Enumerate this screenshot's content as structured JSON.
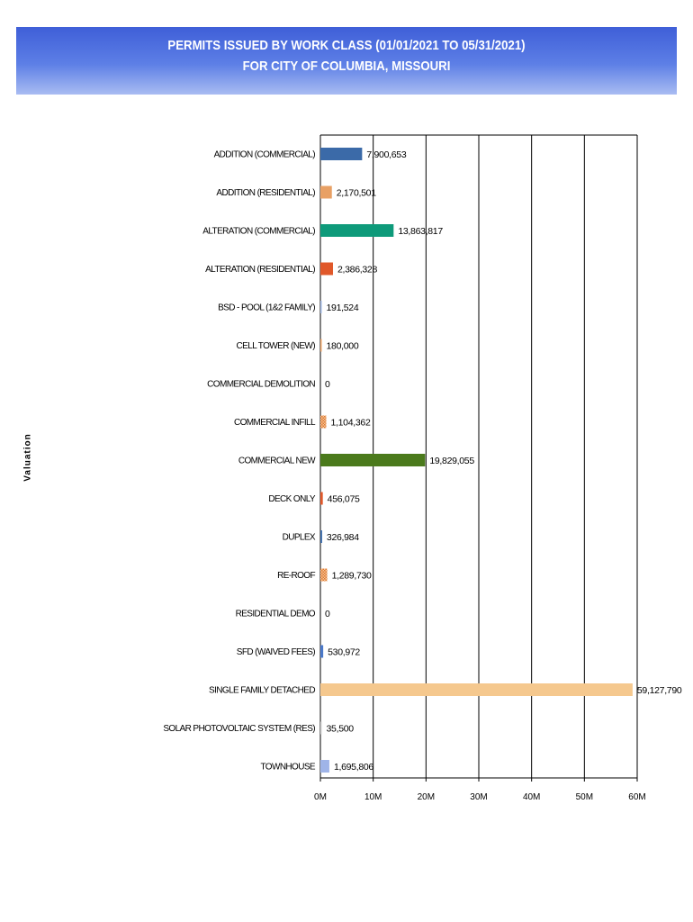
{
  "chart_data": {
    "type": "bar",
    "orientation": "horizontal",
    "title": "PERMITS ISSUED BY WORK CLASS (01/01/2021 TO 05/31/2021)",
    "subtitle": "FOR CITY OF COLUMBIA, MISSOURI",
    "ylabel": "Valuation",
    "xlabel": "",
    "xlim": [
      0,
      60000000
    ],
    "x_ticks": [
      0,
      10000000,
      20000000,
      30000000,
      40000000,
      50000000,
      60000000
    ],
    "x_tick_labels": [
      "0M",
      "10M",
      "20M",
      "30M",
      "40M",
      "50M",
      "60M"
    ],
    "grid": "vertical",
    "categories": [
      "ADDITION (COMMERCIAL)",
      "ADDITION (RESIDENTIAL)",
      "ALTERATION (COMMERCIAL)",
      "ALTERATION (RESIDENTIAL)",
      "BSD - POOL (1&2 FAMILY)",
      "CELL TOWER (NEW)",
      "COMMERCIAL DEMOLITION",
      "COMMERCIAL INFILL",
      "COMMERCIAL NEW",
      "DECK ONLY",
      "DUPLEX",
      "RE-ROOF",
      "RESIDENTIAL DEMO",
      "SFD (WAIVED FEES)",
      "SINGLE FAMILY DETACHED",
      "SOLAR PHOTOVOLTAIC SYSTEM (RES)",
      "TOWNHOUSE"
    ],
    "values": [
      7900653,
      2170501,
      13863817,
      2386328,
      191524,
      180000,
      0,
      1104362,
      19829055,
      456075,
      326984,
      1289730,
      0,
      530972,
      59127790,
      35500,
      1695806
    ],
    "value_labels": [
      "7,900,653",
      "2,170,501",
      "13,863,817",
      "2,386,328",
      "191,524",
      "180,000",
      "0",
      "1,104,362",
      "19,829,055",
      "456,075",
      "326,984",
      "1,289,730",
      "0",
      "530,972",
      "59,127,790",
      "35,500",
      "1,695,806"
    ],
    "colors": [
      "#3b6aa8",
      "#e8a064",
      "#0e9a7a",
      "#e0582a",
      "#9bb3de",
      "#e8a064",
      "#cccccc",
      "#e8a064",
      "#4b7a1c",
      "#e0582a",
      "#3b6aa8",
      "#e8a064",
      "#cccccc",
      "#4a78c8",
      "#f5c88e",
      "#cccccc",
      "#9fb4e8"
    ],
    "patterned": [
      false,
      false,
      false,
      false,
      false,
      false,
      false,
      true,
      false,
      false,
      false,
      true,
      false,
      false,
      false,
      false,
      false
    ]
  }
}
